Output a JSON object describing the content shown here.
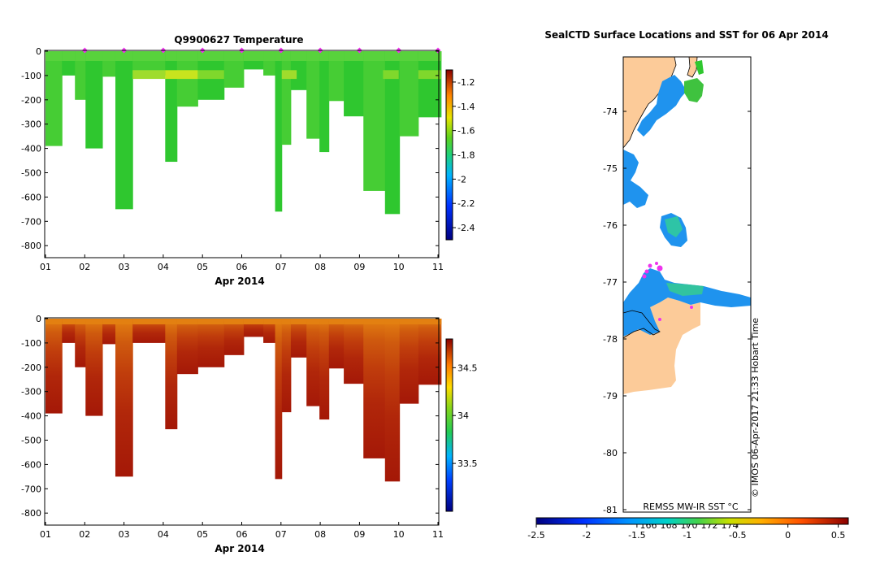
{
  "chart_data": [
    {
      "type": "heatmap",
      "title": "Q9900627  Temperature",
      "xlabel": "Apr 2014",
      "ylabel": "",
      "x_ticks": [
        "01",
        "02",
        "03",
        "04",
        "05",
        "06",
        "07",
        "08",
        "09",
        "10",
        "11"
      ],
      "xlim": [
        1,
        11
      ],
      "ylim": [
        -850,
        0
      ],
      "y_ticks": [
        0,
        -100,
        -200,
        -300,
        -400,
        -500,
        -600,
        -700,
        -800
      ],
      "colorbar": {
        "ticks": [
          "-1.2",
          "-1.4",
          "-1.6",
          "-1.8",
          "-2",
          "-2.2",
          "-2.4"
        ],
        "values": [
          -1.2,
          -1.4,
          -1.6,
          -1.8,
          -2.0,
          -2.2,
          -2.4
        ],
        "range": [
          -2.5,
          -1.1
        ]
      },
      "profiles": [
        {
          "start": 1.0,
          "end": 1.42,
          "depth": 390,
          "value": -1.85
        },
        {
          "start": 1.42,
          "end": 1.75,
          "depth": 100,
          "value": -1.85
        },
        {
          "start": 1.75,
          "end": 2.02,
          "depth": 200,
          "value": -1.85
        },
        {
          "start": 2.02,
          "end": 2.45,
          "depth": 400,
          "value": -1.85
        },
        {
          "start": 2.45,
          "end": 2.78,
          "depth": 105,
          "value": -1.85
        },
        {
          "start": 2.78,
          "end": 3.22,
          "depth": 650,
          "value": -1.85
        },
        {
          "start": 3.22,
          "end": 4.05,
          "depth": 100,
          "value": -1.7
        },
        {
          "start": 4.05,
          "end": 4.35,
          "depth": 455,
          "value": -1.85
        },
        {
          "start": 4.35,
          "end": 4.88,
          "depth": 228,
          "value": -1.85
        },
        {
          "start": 4.88,
          "end": 5.55,
          "depth": 200,
          "value": -1.85
        },
        {
          "start": 5.55,
          "end": 6.05,
          "depth": 150,
          "value": -1.85
        },
        {
          "start": 6.05,
          "end": 6.55,
          "depth": 75,
          "value": -1.85
        },
        {
          "start": 6.55,
          "end": 6.85,
          "depth": 100,
          "value": -1.85
        },
        {
          "start": 6.85,
          "end": 7.02,
          "depth": 660,
          "value": -1.85
        },
        {
          "start": 7.02,
          "end": 7.25,
          "depth": 385,
          "value": -1.85
        },
        {
          "start": 7.25,
          "end": 7.65,
          "depth": 160,
          "value": -1.85
        },
        {
          "start": 7.65,
          "end": 7.98,
          "depth": 360,
          "value": -1.85
        },
        {
          "start": 7.98,
          "end": 8.22,
          "depth": 415,
          "value": -1.85
        },
        {
          "start": 8.22,
          "end": 8.6,
          "depth": 205,
          "value": -1.85
        },
        {
          "start": 8.6,
          "end": 9.1,
          "depth": 268,
          "value": -1.85
        },
        {
          "start": 9.1,
          "end": 9.65,
          "depth": 575,
          "value": -1.85
        },
        {
          "start": 9.65,
          "end": 10.02,
          "depth": 670,
          "value": -1.85
        },
        {
          "start": 10.02,
          "end": 10.5,
          "depth": 350,
          "value": -1.85
        },
        {
          "start": 10.5,
          "end": 11.08,
          "depth": 272,
          "value": -1.85
        }
      ],
      "cast_markers": [
        2,
        3,
        4,
        5,
        6,
        7,
        8,
        9,
        10,
        11
      ]
    },
    {
      "type": "heatmap",
      "title": "",
      "xlabel": "Apr 2014",
      "ylabel": "",
      "x_ticks": [
        "01",
        "02",
        "03",
        "04",
        "05",
        "06",
        "07",
        "08",
        "09",
        "10",
        "11"
      ],
      "xlim": [
        1,
        11
      ],
      "ylim": [
        -850,
        0
      ],
      "y_ticks": [
        0,
        -100,
        -200,
        -300,
        -400,
        -500,
        -600,
        -700,
        -800
      ],
      "colorbar": {
        "ticks": [
          "34.5",
          "34",
          "33.5"
        ],
        "values": [
          34.5,
          34.0,
          33.5
        ],
        "range": [
          33.0,
          34.8
        ]
      },
      "profiles_same_as": "Temperature panel"
    },
    {
      "type": "map",
      "title": "SealCTD Surface Locations and SST for 06 Apr 2014",
      "y_ticks": [
        "-74",
        "-75",
        "-76",
        "-77",
        "-78",
        "-79",
        "-80",
        "-81"
      ],
      "x_ticks": [
        "166",
        "168",
        "170",
        "172",
        "174"
      ],
      "colorbar": {
        "ticks": [
          "-2.5",
          "-2",
          "-1.5",
          "-1",
          "-0.5",
          "0",
          "0.5"
        ],
        "range": [
          -2.5,
          0.6
        ]
      },
      "source_label": "REMSS MW-IR SST °C",
      "watermark": "© IMOS 06-Apr-2017 21:33 Hobart Time"
    }
  ],
  "colors": {
    "temp_green": "#2fc72f",
    "temp_green_light": "#46cd34",
    "temp_warm_band": "#9fdc2c",
    "salinity_surface": "#e38011",
    "salinity_deep": "#a81c08",
    "land": "#fccb99",
    "ice_blue": "#1f93ee",
    "cast_marker": "#ee33ee"
  }
}
